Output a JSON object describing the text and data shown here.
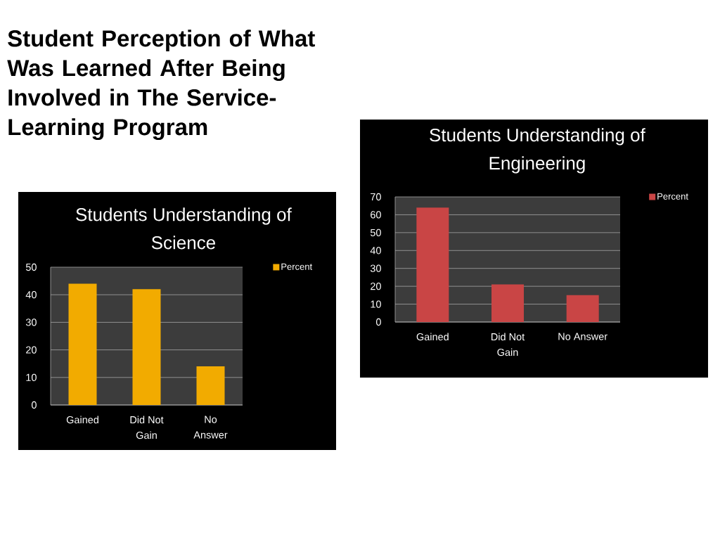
{
  "chart_data": [
    {
      "type": "other",
      "title": "Student Perception of What Was Learned After Being Involved in The Service-Learning Program"
    },
    {
      "type": "bar",
      "title": "Students Understanding of Science",
      "categories": [
        "Gained",
        "Did Not Gain",
        "No Answer"
      ],
      "series": [
        {
          "name": "Percent",
          "color": "#f2ab00",
          "values": [
            44,
            42,
            14
          ]
        }
      ],
      "ylim": [
        0,
        50
      ],
      "yticks": [
        0,
        10,
        20,
        30,
        40,
        50
      ],
      "grid": "y",
      "legend": "top right"
    },
    {
      "type": "bar",
      "title": "Students Understanding of Engineering",
      "categories": [
        "Gained",
        "Did Not Gain",
        "No Answer"
      ],
      "series": [
        {
          "name": "Percent",
          "color": "#c94545",
          "values": [
            64,
            21,
            15
          ]
        }
      ],
      "ylim": [
        0,
        70
      ],
      "yticks": [
        0,
        10,
        20,
        30,
        40,
        50,
        60,
        70
      ],
      "grid": "y",
      "legend": "top right"
    }
  ]
}
